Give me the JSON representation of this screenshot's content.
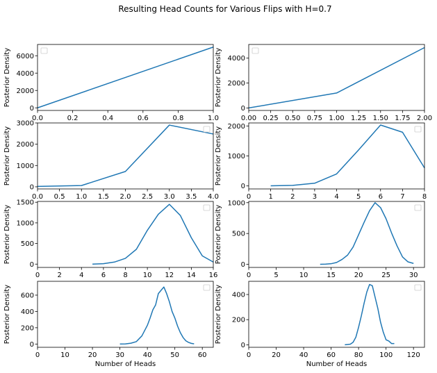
{
  "figure": {
    "title": "Resulting Head Counts for Various Flips with H=0.7",
    "line_color": "#1f77b4"
  },
  "chart_data": [
    {
      "type": "line",
      "ylabel": "Posterior Density",
      "xlabel": "",
      "legend": "top-left",
      "xlim": [
        0,
        1
      ],
      "ylim": [
        -300,
        7300
      ],
      "xticks": [
        "0.0",
        "0.2",
        "0.4",
        "0.6",
        "0.8",
        "1.0"
      ],
      "yticks": [
        "0",
        "2000",
        "4000",
        "6000"
      ],
      "x": [
        0,
        1
      ],
      "y": [
        0,
        7000
      ]
    },
    {
      "type": "line",
      "ylabel": "Posterior Density",
      "xlabel": "",
      "legend": "top-left",
      "xlim": [
        0,
        2
      ],
      "ylim": [
        -200,
        5100
      ],
      "xticks": [
        "0.00",
        "0.25",
        "0.50",
        "0.75",
        "1.00",
        "1.25",
        "1.50",
        "1.75",
        "2.00"
      ],
      "yticks": [
        "0",
        "2000",
        "4000"
      ],
      "x": [
        0,
        1,
        2
      ],
      "y": [
        0,
        1200,
        4850
      ]
    },
    {
      "type": "line",
      "ylabel": "Posterior Density",
      "xlabel": "",
      "legend": "top-right",
      "xlim": [
        0,
        4
      ],
      "ylim": [
        -100,
        3000
      ],
      "xticks": [
        "0.0",
        "0.5",
        "1.0",
        "1.5",
        "2.0",
        "2.5",
        "3.0",
        "3.5",
        "4.0"
      ],
      "yticks": [
        "0",
        "1000",
        "2000",
        "3000"
      ],
      "x": [
        0,
        1,
        2,
        3,
        4
      ],
      "y": [
        20,
        60,
        720,
        2900,
        2480
      ]
    },
    {
      "type": "line",
      "ylabel": "Posterior Density",
      "xlabel": "",
      "legend": "top-right",
      "xlim": [
        0,
        8
      ],
      "ylim": [
        -100,
        2100
      ],
      "xticks": [
        "0",
        "1",
        "2",
        "3",
        "4",
        "5",
        "6",
        "7",
        "8"
      ],
      "yticks": [
        "0",
        "1000",
        "2000"
      ],
      "x": [
        1,
        2,
        3,
        4,
        5,
        6,
        7,
        8
      ],
      "y": [
        5,
        20,
        90,
        400,
        1200,
        2030,
        1790,
        600
      ]
    },
    {
      "type": "line",
      "ylabel": "Posterior Density",
      "xlabel": "",
      "legend": "top-right",
      "xlim": [
        0,
        16
      ],
      "ylim": [
        -80,
        1520
      ],
      "xticks": [
        "0",
        "2",
        "4",
        "6",
        "8",
        "10",
        "12",
        "14",
        "16"
      ],
      "yticks": [
        "0",
        "500",
        "1000",
        "1500"
      ],
      "x": [
        5,
        6,
        7,
        8,
        9,
        10,
        11,
        12,
        13,
        14,
        15,
        16
      ],
      "y": [
        0,
        10,
        50,
        140,
        360,
        820,
        1210,
        1450,
        1180,
        640,
        200,
        50
      ]
    },
    {
      "type": "line",
      "ylabel": "Posterior Density",
      "xlabel": "",
      "legend": "top-right",
      "xlim": [
        0,
        32
      ],
      "ylim": [
        -50,
        1020
      ],
      "xticks": [
        "0",
        "5",
        "10",
        "15",
        "20",
        "25",
        "30"
      ],
      "yticks": [
        "0",
        "500",
        "1000"
      ],
      "x": [
        13,
        14,
        15,
        16,
        17,
        18,
        19,
        20,
        21,
        22,
        23,
        24,
        25,
        26,
        27,
        28,
        29,
        30
      ],
      "y": [
        0,
        3,
        10,
        30,
        80,
        150,
        280,
        480,
        680,
        870,
        1000,
        920,
        740,
        510,
        300,
        120,
        40,
        15
      ]
    },
    {
      "type": "line",
      "ylabel": "Posterior Density",
      "xlabel": "Number of Heads",
      "legend": "top-right",
      "xlim": [
        0,
        64
      ],
      "ylim": [
        -40,
        770
      ],
      "xticks": [
        "0",
        "10",
        "20",
        "30",
        "40",
        "50",
        "60"
      ],
      "yticks": [
        "0",
        "200",
        "400",
        "600"
      ],
      "x": [
        30,
        32,
        34,
        36,
        38,
        40,
        41,
        42,
        43,
        44,
        45,
        46,
        47,
        48,
        49,
        50,
        51,
        52,
        53,
        54,
        55,
        56,
        57
      ],
      "y": [
        0,
        2,
        10,
        30,
        100,
        230,
        320,
        420,
        480,
        620,
        660,
        700,
        620,
        520,
        400,
        320,
        220,
        140,
        80,
        40,
        20,
        8,
        3
      ]
    },
    {
      "type": "line",
      "ylabel": "Posterior Density",
      "xlabel": "Number of Heads",
      "legend": "top-right",
      "xlim": [
        0,
        128
      ],
      "ylim": [
        -20,
        505
      ],
      "xticks": [
        "0",
        "20",
        "40",
        "60",
        "80",
        "100",
        "120"
      ],
      "yticks": [
        "0",
        "200",
        "400"
      ],
      "x": [
        70,
        74,
        76,
        78,
        80,
        82,
        84,
        86,
        88,
        90,
        92,
        94,
        96,
        98,
        100,
        102,
        104,
        106
      ],
      "y": [
        0,
        5,
        20,
        60,
        140,
        230,
        330,
        420,
        480,
        470,
        380,
        290,
        180,
        100,
        40,
        30,
        10,
        10
      ]
    }
  ]
}
